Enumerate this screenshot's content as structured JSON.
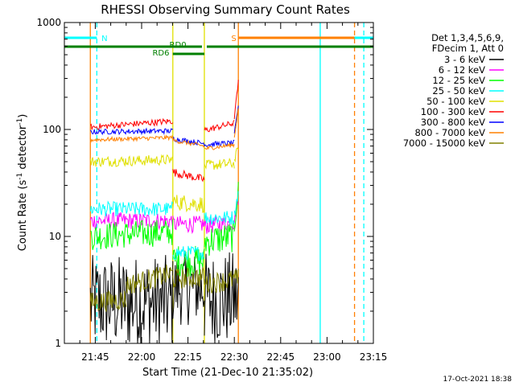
{
  "chart_data": {
    "type": "line",
    "title": "RHESSI Observing Summary Count Rates",
    "xlabel": "Start Time (21-Dec-10 21:35:02)",
    "ylabel_main": "Count Rate (s",
    "ylabel_sup1": "-1",
    "ylabel_mid": " detector",
    "ylabel_sup2": "-1",
    "ylabel_end": ")",
    "x_unit": "minutes after 21:35:02",
    "xlim": [
      0,
      100
    ],
    "ylim": [
      1,
      1000
    ],
    "y_scale": "log",
    "x_ticks": [
      {
        "label": "21:45",
        "value": 10
      },
      {
        "label": "22:00",
        "value": 25
      },
      {
        "label": "22:15",
        "value": 40
      },
      {
        "label": "22:30",
        "value": 55
      },
      {
        "label": "22:45",
        "value": 70
      },
      {
        "label": "23:00",
        "value": 85
      },
      {
        "label": "23:15",
        "value": 100
      }
    ],
    "y_ticks": [
      {
        "label": "1",
        "value": 1
      },
      {
        "label": "10",
        "value": 10
      },
      {
        "label": "100",
        "value": 100
      },
      {
        "label": "1000",
        "value": 1000
      }
    ],
    "legend": {
      "position": "right",
      "header": [
        "Det 1,3,4,5,6,9,",
        "FDecim 1, Att 0"
      ]
    },
    "series": [
      {
        "name": "3 - 6 keV",
        "color": "#000000",
        "segments": [
          {
            "x": [
              8.4,
              35.1
            ],
            "y": [
              2.4,
              2.4
            ],
            "noise": 0.45
          },
          {
            "x": [
              35.1,
              45.3
            ],
            "y": [
              3.3,
              3.3
            ],
            "noise": 0.35
          },
          {
            "x": [
              45.3,
              56.3
            ],
            "y": [
              2.6,
              2.6
            ],
            "noise": 0.45
          }
        ]
      },
      {
        "name": "6 - 12 keV",
        "color": "#ff00ff",
        "segments": [
          {
            "x": [
              8.4,
              35.1
            ],
            "y": [
              14,
              14
            ],
            "noise": 0.08
          },
          {
            "x": [
              35.1,
              45.3
            ],
            "y": [
              13,
              13
            ],
            "noise": 0.08
          },
          {
            "x": [
              45.3,
              55.0
            ],
            "y": [
              12.5,
              13.5
            ],
            "noise": 0.08
          },
          {
            "x": [
              55.0,
              56.3
            ],
            "y": [
              14,
              22
            ],
            "noise": 0.05
          }
        ]
      },
      {
        "name": "12 - 25 keV",
        "color": "#00ff00",
        "segments": [
          {
            "x": [
              8.4,
              35.1
            ],
            "y": [
              10,
              11
            ],
            "noise": 0.13
          },
          {
            "x": [
              35.1,
              45.3
            ],
            "y": [
              6.0,
              5.8
            ],
            "noise": 0.15
          },
          {
            "x": [
              45.3,
              55.0
            ],
            "y": [
              9.0,
              10.0
            ],
            "noise": 0.15
          },
          {
            "x": [
              55.0,
              56.3
            ],
            "y": [
              12,
              28
            ],
            "noise": 0.08
          }
        ]
      },
      {
        "name": "25 - 50 keV",
        "color": "#00ffff",
        "segments": [
          {
            "x": [
              8.4,
              35.1
            ],
            "y": [
              18,
              18
            ],
            "noise": 0.07
          },
          {
            "x": [
              35.1,
              45.3
            ],
            "y": [
              7.0,
              7.0
            ],
            "noise": 0.07
          },
          {
            "x": [
              45.3,
              55.0
            ],
            "y": [
              15,
              15
            ],
            "noise": 0.07
          },
          {
            "x": [
              55.0,
              56.3
            ],
            "y": [
              16,
              26
            ],
            "noise": 0.05
          }
        ]
      },
      {
        "name": "50 - 100 keV",
        "color": "#e0e000",
        "segments": [
          {
            "x": [
              8.4,
              35.1
            ],
            "y": [
              50,
              52
            ],
            "noise": 0.05
          },
          {
            "x": [
              35.1,
              45.3
            ],
            "y": [
              21,
              20
            ],
            "noise": 0.08
          },
          {
            "x": [
              45.3,
              55.0
            ],
            "y": [
              46,
              48
            ],
            "noise": 0.05
          },
          {
            "x": [
              55.0,
              56.3
            ],
            "y": [
              50,
              70
            ],
            "noise": 0.04
          }
        ]
      },
      {
        "name": "100 - 300 keV",
        "color": "#ff0000",
        "segments": [
          {
            "x": [
              8.4,
              35.1
            ],
            "y": [
              105,
              120
            ],
            "noise": 0.03
          },
          {
            "x": [
              35.1,
              45.3
            ],
            "y": [
              40,
              34
            ],
            "noise": 0.04
          },
          {
            "x": [
              45.3,
              55.0
            ],
            "y": [
              98,
              115
            ],
            "noise": 0.03
          },
          {
            "x": [
              55.0,
              56.3
            ],
            "y": [
              130,
              280
            ],
            "noise": 0.02
          }
        ]
      },
      {
        "name": "300 - 800 keV",
        "color": "#0000ff",
        "segments": [
          {
            "x": [
              8.4,
              35.1
            ],
            "y": [
              95,
              97
            ],
            "noise": 0.025
          },
          {
            "x": [
              35.1,
              45.3
            ],
            "y": [
              82,
              74
            ],
            "noise": 0.025
          },
          {
            "x": [
              45.3,
              55.0
            ],
            "y": [
              72,
              75
            ],
            "noise": 0.025
          },
          {
            "x": [
              55.0,
              56.3
            ],
            "y": [
              90,
              170
            ],
            "noise": 0.02
          }
        ]
      },
      {
        "name": "800 - 7000 keV",
        "color": "#ff8000",
        "segments": [
          {
            "x": [
              8.4,
              35.1
            ],
            "y": [
              80,
              84
            ],
            "noise": 0.02
          },
          {
            "x": [
              35.1,
              45.3
            ],
            "y": [
              79,
              70
            ],
            "noise": 0.02
          },
          {
            "x": [
              45.3,
              55.0
            ],
            "y": [
              66,
              72
            ],
            "noise": 0.02
          },
          {
            "x": [
              55.0,
              56.3
            ],
            "y": [
              85,
              160
            ],
            "noise": 0.02
          }
        ]
      },
      {
        "name": "7000 - 15000 keV",
        "color": "#808000",
        "segments": [
          {
            "x": [
              8.4,
              20.0
            ],
            "y": [
              2.4,
              2.6
            ],
            "noise": 0.1
          },
          {
            "x": [
              20.0,
              35.1
            ],
            "y": [
              3.5,
              4.5
            ],
            "noise": 0.1
          },
          {
            "x": [
              35.1,
              45.3
            ],
            "y": [
              4.0,
              4.2
            ],
            "noise": 0.1
          },
          {
            "x": [
              45.3,
              56.3
            ],
            "y": [
              3.6,
              4.0
            ],
            "noise": 0.1
          }
        ]
      }
    ],
    "vlines": [
      {
        "x": 8.4,
        "color": "#ff8000",
        "style": "solid"
      },
      {
        "x": 10.5,
        "color": "#00ffff",
        "style": "dashed"
      },
      {
        "x": 35.1,
        "color": "#e0e000",
        "style": "solid"
      },
      {
        "x": 45.3,
        "color": "#e0e000",
        "style": "solid"
      },
      {
        "x": 56.3,
        "color": "#ff8000",
        "style": "solid"
      },
      {
        "x": 82.8,
        "color": "#00ffff",
        "style": "solid"
      },
      {
        "x": 93.9,
        "color": "#ff8000",
        "style": "dashed"
      },
      {
        "x": 96.9,
        "color": "#00ffff",
        "style": "dashed"
      }
    ],
    "flag_bars": [
      {
        "label": "N",
        "color": "#00ffff",
        "segments": [
          [
            0,
            10.5
          ],
          [
            82.8,
            100
          ]
        ],
        "label_x": 12.0,
        "level": "upper"
      },
      {
        "label": "S",
        "color": "#ff8000",
        "segments": [
          [
            56.3,
            93.9
          ]
        ],
        "label_x": 54.0,
        "level": "upper"
      },
      {
        "label": "RD0",
        "color": "#008000",
        "segments": [
          [
            0,
            45.3
          ],
          [
            45.3,
            100
          ]
        ],
        "label_x": 34.0,
        "level": "middle"
      },
      {
        "label": "RD6",
        "color": "#008000",
        "segments": [
          [
            35.1,
            45.3
          ]
        ],
        "label_x": 28.5,
        "level": "lower"
      }
    ],
    "grid": false
  },
  "footer": {
    "timestamp": "17-Oct-2021 18:38"
  }
}
